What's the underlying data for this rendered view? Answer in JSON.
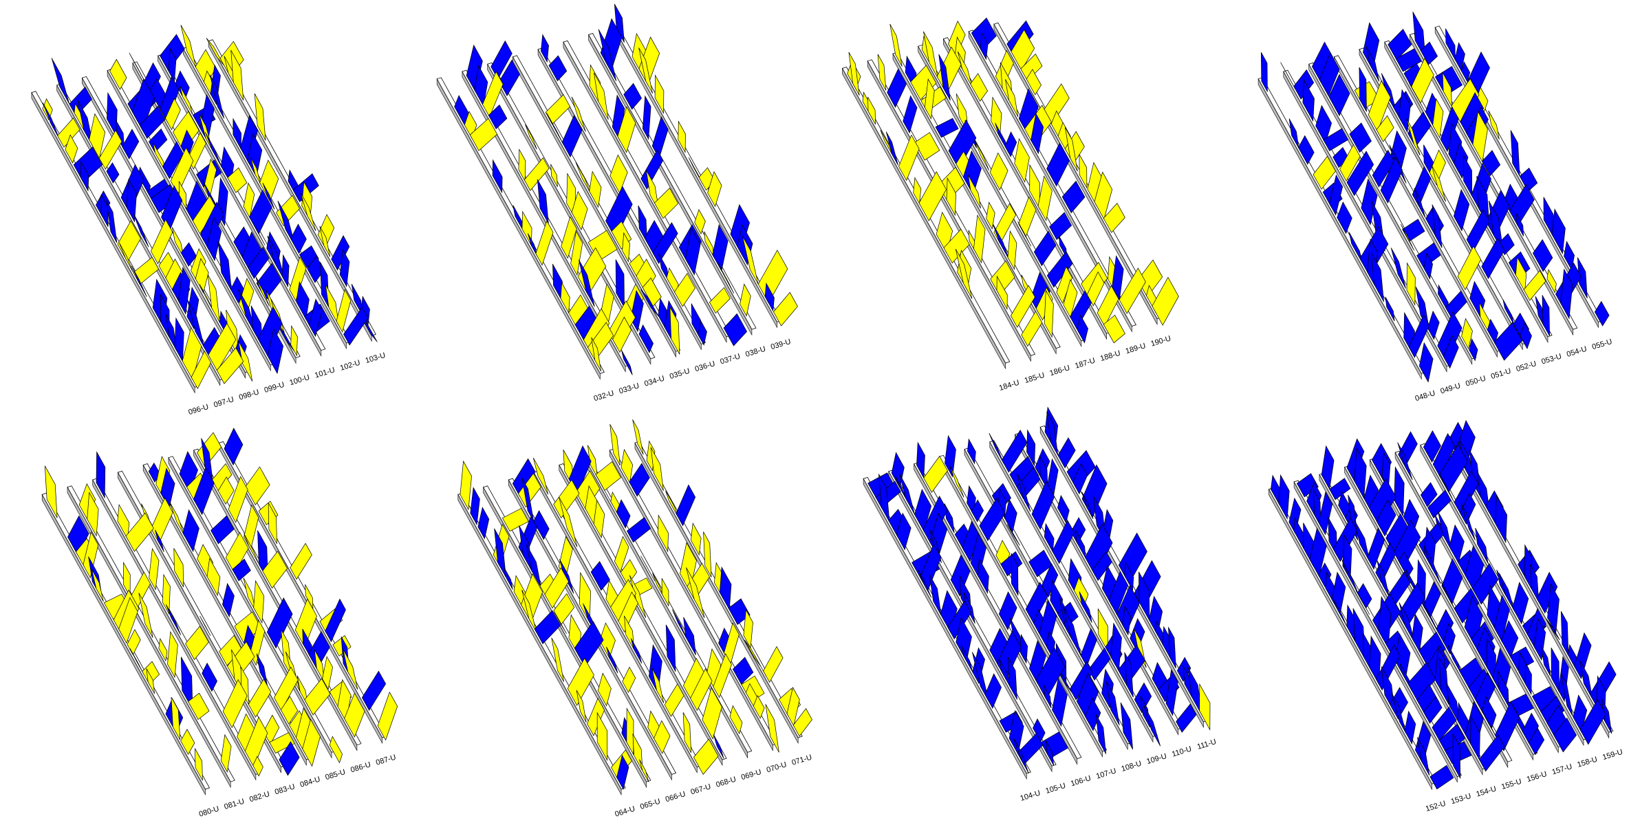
{
  "panels": [
    {
      "labels": [
        "096-U",
        "097-U",
        "098-U",
        "099-U",
        "100-U",
        "101-U",
        "102-U",
        "103-U"
      ]
    },
    {
      "labels": [
        "032-U",
        "033-U",
        "034-U",
        "035-U",
        "036-U",
        "037-U",
        "038-U",
        "039-U"
      ]
    },
    {
      "labels": [
        "184-U",
        "185-U",
        "186-U",
        "187-U",
        "188-U",
        "189-U",
        "190-U"
      ]
    },
    {
      "labels": [
        "048-U",
        "049-U",
        "050-U",
        "051-U",
        "052-U",
        "053-U",
        "054-U",
        "055-U"
      ]
    },
    {
      "labels": [
        "080-U",
        "081-U",
        "082-U",
        "083-U",
        "084-U",
        "085-U",
        "086-U",
        "087-U"
      ]
    },
    {
      "labels": [
        "064-U",
        "065-U",
        "066-U",
        "067-U",
        "068-U",
        "069-U",
        "070-U",
        "071-U"
      ]
    },
    {
      "labels": [
        "104-U",
        "105-U",
        "106-U",
        "107-U",
        "108-U",
        "109-U",
        "110-U",
        "111-U"
      ]
    },
    {
      "labels": [
        "152-U",
        "153-U",
        "154-U",
        "155-U",
        "156-U",
        "157-U",
        "158-U",
        "159-U"
      ]
    }
  ]
}
